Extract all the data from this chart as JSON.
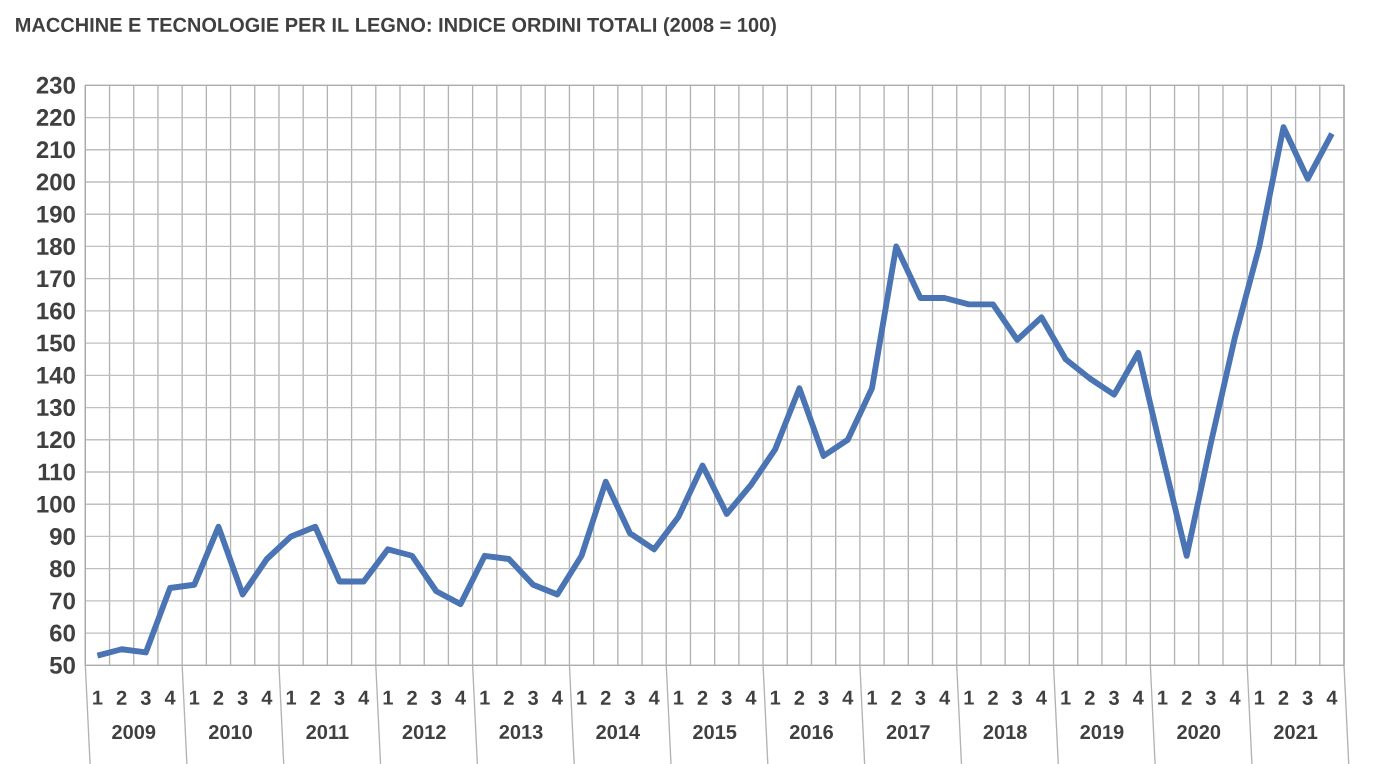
{
  "chart_data": {
    "type": "line",
    "title": "MACCHINE E TECNOLOGIE PER IL LEGNO: INDICE ORDINI TOTALI (2008 = 100)",
    "categories": [
      "1",
      "2",
      "3",
      "4",
      "1",
      "2",
      "3",
      "4",
      "1",
      "2",
      "3",
      "4",
      "1",
      "2",
      "3",
      "4",
      "1",
      "2",
      "3",
      "4",
      "1",
      "2",
      "3",
      "4",
      "1",
      "2",
      "3",
      "4",
      "1",
      "2",
      "3",
      "4",
      "1",
      "2",
      "3",
      "4",
      "1",
      "2",
      "3",
      "4",
      "1",
      "2",
      "3",
      "4",
      "1",
      "2",
      "3",
      "4",
      "1",
      "2",
      "3",
      "4"
    ],
    "values": [
      53,
      55,
      54,
      74,
      75,
      93,
      72,
      83,
      90,
      93,
      76,
      76,
      86,
      84,
      73,
      69,
      84,
      83,
      75,
      72,
      84,
      107,
      91,
      86,
      96,
      112,
      97,
      106,
      117,
      136,
      115,
      120,
      136,
      180,
      164,
      164,
      162,
      162,
      151,
      158,
      145,
      139,
      134,
      147,
      115,
      84,
      119,
      152,
      180,
      217,
      201,
      215
    ],
    "color": "#4a74b4",
    "annotations": [
      "2009",
      "2010",
      "2011",
      "2012",
      "2013",
      "2014",
      "2015",
      "2016",
      "2017",
      "2018",
      "2019",
      "2020",
      "2021"
    ],
    "ylim": [
      50,
      230
    ],
    "yticks": [
      50,
      60,
      70,
      80,
      90,
      100,
      110,
      120,
      130,
      140,
      150,
      160,
      170,
      180,
      190,
      200,
      210,
      220,
      230
    ],
    "grid": true,
    "marker": "none",
    "line_style": "solid"
  }
}
